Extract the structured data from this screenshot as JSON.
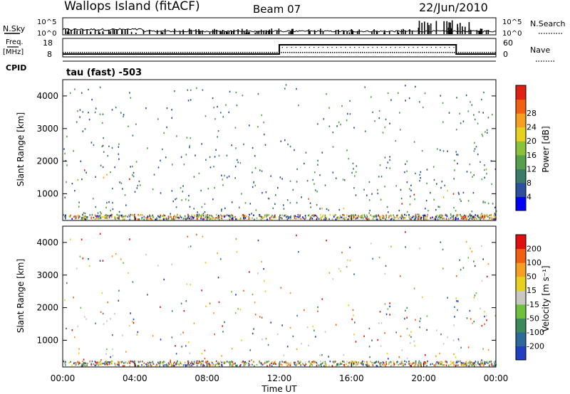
{
  "header": {
    "station": "Wallops Island (fitACF)",
    "beam": "Beam 07",
    "date": "22/Jun/2010"
  },
  "top_panels": {
    "nsky_label": "N.Sky",
    "nsearch_label": "N.Search",
    "nsky_ticks": [
      "10^5",
      "10^0"
    ],
    "nsearch_ticks": [
      "10^5",
      "10^0"
    ],
    "freq_label": "Freq.",
    "freq_unit": "[MHz]",
    "freq_ticks": [
      "18",
      "8"
    ],
    "nave_label": "Nave",
    "nave_ticks": [
      "60",
      "0"
    ],
    "cpid_label": "CPID",
    "cpid_text": "tau (fast) -503"
  },
  "chart_data": [
    {
      "type": "heatmap",
      "name": "power",
      "ylabel": "Slant Range [km]",
      "yticks": [
        "1000",
        "2000",
        "3000",
        "4000"
      ],
      "ylim": [
        180,
        4500
      ],
      "xlim_hours": [
        0,
        24
      ],
      "colorbar": {
        "label": "Power [dB]",
        "ticks": [
          "4",
          "8",
          "12",
          "16",
          "20",
          "24",
          "28"
        ],
        "colors": [
          "#0000ff",
          "#2d4fa0",
          "#3a7a6a",
          "#55a04a",
          "#8cc23a",
          "#e6d020",
          "#f5a020",
          "#f06010",
          "#e02010"
        ]
      },
      "regions": [
        {
          "t0": 0.0,
          "t1": 4.6,
          "r0": 1100,
          "r1": 2300,
          "level": "high"
        },
        {
          "t0": 0.0,
          "t1": 0.9,
          "r0": 550,
          "r1": 1000,
          "level": "high"
        },
        {
          "t0": 1.2,
          "t1": 3.2,
          "r0": 250,
          "r1": 600,
          "level": "high"
        },
        {
          "t0": 10.5,
          "t1": 13.8,
          "r0": 500,
          "r1": 1100,
          "level": "high"
        },
        {
          "t0": 13.5,
          "t1": 16.5,
          "r0": 500,
          "r1": 1000,
          "level": "mid"
        },
        {
          "t0": 18.5,
          "t1": 24.0,
          "r0": 400,
          "r1": 1200,
          "level": "high"
        },
        {
          "t0": 21.8,
          "t1": 24.0,
          "r0": 1200,
          "r1": 1800,
          "level": "high"
        },
        {
          "t0": 9.5,
          "t1": 22.0,
          "r0": 1000,
          "r1": 1600,
          "level": "low"
        }
      ]
    },
    {
      "type": "heatmap",
      "name": "velocity",
      "ylabel": "Slant Range [km]",
      "yticks": [
        "1000",
        "2000",
        "3000",
        "4000"
      ],
      "ylim": [
        180,
        4500
      ],
      "xlim_hours": [
        0,
        24
      ],
      "xticks": [
        "00:00",
        "04:00",
        "08:00",
        "12:00",
        "16:00",
        "20:00",
        "00:00"
      ],
      "xlabel": "Time UT",
      "colorbar": {
        "label": "Velocity [m s⁻¹]",
        "ticks": [
          "200",
          "100",
          "50",
          "15",
          "-15",
          "-50",
          "-100",
          "-200"
        ],
        "colors": [
          "#2040c0",
          "#2d6a9a",
          "#3a8a5a",
          "#70c040",
          "#c8c8c0",
          "#e8d020",
          "#f5a020",
          "#f06010",
          "#e01010"
        ]
      }
    }
  ],
  "nave_step": {
    "t_on": 12.0,
    "t_off": 21.8,
    "level_high": 60,
    "level_low": 0
  },
  "colors": {
    "background": "#ffffff",
    "ground_scatter": "#c8c8c0"
  }
}
